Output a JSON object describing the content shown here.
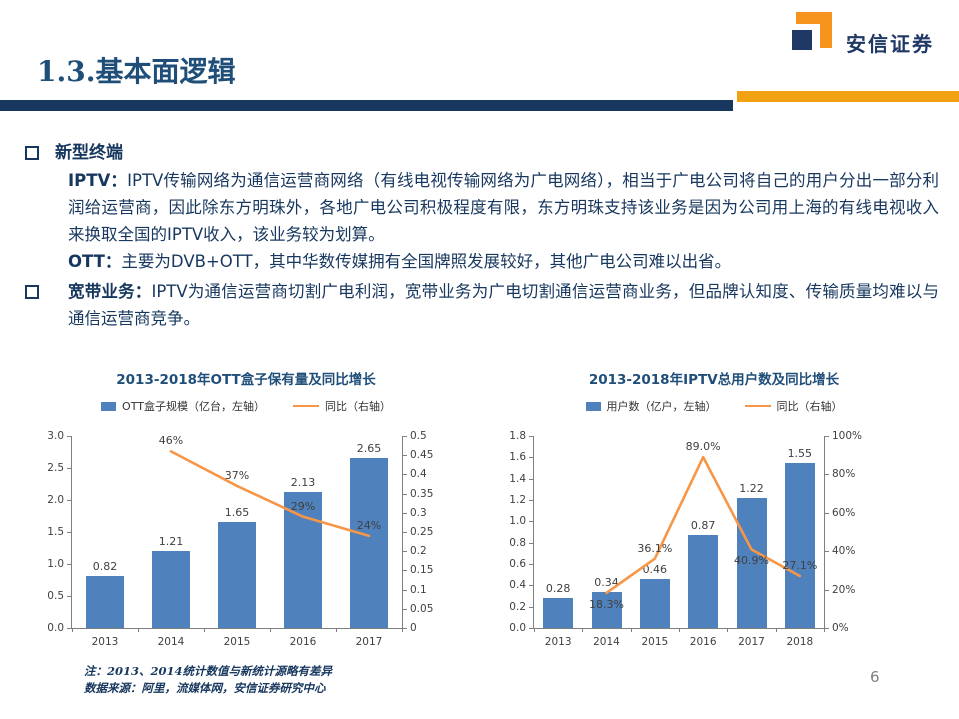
{
  "slide": {
    "title": "1.3.基本面逻辑",
    "brand": "安信证券",
    "page_number": "6"
  },
  "bullets": {
    "b1_heading": "新型终端",
    "b1_item1_lead": "IPTV：",
    "b1_item1_text": "IPTV传输网络为通信运营商网络（有线电视传输网络为广电网络），相当于广电公司将自己的用户分出一部分利润给运营商，因此除东方明珠外，各地广电公司积极程度有限，东方明珠支持该业务是因为公司用上海的有线电视收入来换取全国的IPTV收入，该业务较为划算。",
    "b1_item2_lead": "OTT：",
    "b1_item2_text": "主要为DVB+OTT，其中华数传媒拥有全国牌照发展较好，其他广电公司难以出省。",
    "b2_heading": "宽带业务：",
    "b2_text": "IPTV为通信运营商切割广电利润，宽带业务为广电切割通信运营商业务，但品牌认知度、传输质量均难以与通信运营商竞争。"
  },
  "footnotes": [
    "注：2013、2014统计数值与新统计源略有差异",
    "数据来源：阿里，流媒体网，安信证券研究中心"
  ],
  "colors": {
    "navy": "#17375E",
    "title_blue": "#1F4E79",
    "bar": "#4F81BD",
    "line": "#F79646",
    "accent_orange": "#F2A112"
  },
  "chart_data": [
    {
      "type": "bar",
      "title": "2013-2018年OTT盒子保有量及同比增长",
      "legend": [
        "OTT盒子规模（亿台，左轴）",
        "同比（右轴）"
      ],
      "legend_position": "top",
      "grid": false,
      "categories": [
        "2013",
        "2014",
        "2015",
        "2016",
        "2017"
      ],
      "bars": [
        0.82,
        1.21,
        1.65,
        2.13,
        2.65
      ],
      "bar_labels": [
        "0.82",
        "1.21",
        "1.65",
        "2.13",
        "2.65"
      ],
      "line": [
        null,
        0.46,
        0.37,
        0.29,
        0.24
      ],
      "line_labels": [
        null,
        "46%",
        "37%",
        "29%",
        "24%"
      ],
      "line_label_side": [
        null,
        "above",
        "above",
        "above",
        "above"
      ],
      "left_max": 3.0,
      "left_ticks": [
        "3.0",
        "2.5",
        "2.0",
        "1.5",
        "1.0",
        "0.5",
        "0.0"
      ],
      "right_max": 0.5,
      "right_ticks": [
        "0.5",
        "0.45",
        "0.4",
        "0.35",
        "0.3",
        "0.25",
        "0.2",
        "0.15",
        "0.1",
        "0.05",
        "0"
      ]
    },
    {
      "type": "bar",
      "title": "2013-2018年IPTV总用户数及同比增长",
      "legend": [
        "用户数（亿户，左轴）",
        "同比（右轴）"
      ],
      "legend_position": "top",
      "grid": false,
      "categories": [
        "2013",
        "2014",
        "2015",
        "2016",
        "2017",
        "2018"
      ],
      "bars": [
        0.28,
        0.34,
        0.46,
        0.87,
        1.22,
        1.55
      ],
      "bar_labels": [
        "0.28",
        "0.34",
        "0.46",
        "0.87",
        "1.22",
        "1.55"
      ],
      "line": [
        null,
        18.3,
        36.1,
        89.0,
        40.9,
        27.1
      ],
      "line_labels": [
        null,
        "18.3%",
        "36.1%",
        "89.0%",
        "40.9%",
        "27.1%"
      ],
      "line_label_side": [
        null,
        "below",
        "above",
        "above",
        "below",
        "above"
      ],
      "left_max": 1.8,
      "left_ticks": [
        "1.8",
        "1.6",
        "1.4",
        "1.2",
        "1.0",
        "0.8",
        "0.6",
        "0.4",
        "0.2",
        "0.0"
      ],
      "right_max": 100,
      "right_ticks": [
        "100%",
        "80%",
        "60%",
        "40%",
        "20%",
        "0%"
      ]
    }
  ]
}
